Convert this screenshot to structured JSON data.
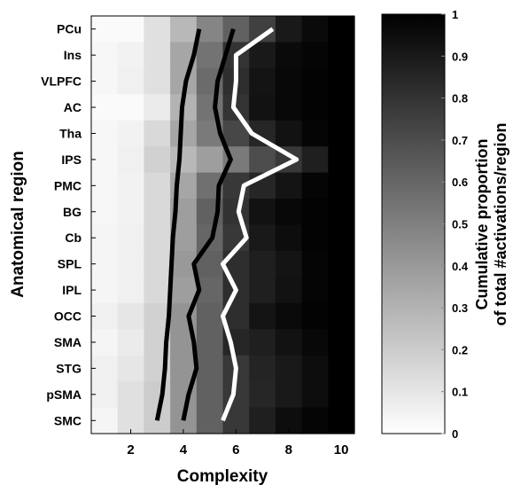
{
  "chart_data": {
    "type": "heatmap",
    "title": "",
    "xlabel": "Complexity",
    "ylabel": "Anatomical region",
    "x_ticks": [
      2,
      4,
      6,
      8,
      10
    ],
    "x_values": [
      1,
      2,
      3,
      4,
      5,
      6,
      7,
      8,
      9,
      10
    ],
    "rows": [
      "PCu",
      "Ins",
      "VLPFC",
      "AC",
      "Tha",
      "IPS",
      "PMC",
      "BG",
      "Cb",
      "SPL",
      "IPL",
      "OCC",
      "SMA",
      "STG",
      "pSMA",
      "SMC"
    ],
    "colorbar": {
      "label_line1": "Cumulative proportion",
      "label_line2": "of total #activations/region",
      "ticks": [
        "0",
        "0.1",
        "0.2",
        "0.3",
        "0.4",
        "0.5",
        "0.6",
        "0.7",
        "0.8",
        "0.9",
        "1"
      ],
      "range": [
        0,
        1
      ],
      "colormap": "white-to-black"
    },
    "cell_values": [
      [
        0.02,
        0.02,
        0.12,
        0.28,
        0.48,
        0.62,
        0.75,
        0.9,
        0.96,
        1.0
      ],
      [
        0.03,
        0.05,
        0.12,
        0.35,
        0.55,
        0.8,
        0.9,
        0.96,
        0.98,
        1.0
      ],
      [
        0.03,
        0.06,
        0.12,
        0.35,
        0.58,
        0.82,
        0.92,
        0.97,
        0.99,
        1.0
      ],
      [
        0.02,
        0.02,
        0.08,
        0.3,
        0.55,
        0.8,
        0.93,
        0.97,
        0.99,
        1.0
      ],
      [
        0.03,
        0.05,
        0.15,
        0.35,
        0.52,
        0.72,
        0.85,
        0.93,
        0.98,
        1.0
      ],
      [
        0.03,
        0.06,
        0.18,
        0.28,
        0.38,
        0.52,
        0.7,
        0.78,
        0.88,
        1.0
      ],
      [
        0.03,
        0.05,
        0.15,
        0.35,
        0.56,
        0.78,
        0.85,
        0.92,
        0.98,
        1.0
      ],
      [
        0.03,
        0.05,
        0.15,
        0.38,
        0.62,
        0.8,
        0.93,
        0.97,
        0.99,
        1.0
      ],
      [
        0.04,
        0.06,
        0.15,
        0.38,
        0.6,
        0.78,
        0.9,
        0.95,
        0.99,
        1.0
      ],
      [
        0.04,
        0.06,
        0.15,
        0.4,
        0.62,
        0.82,
        0.88,
        0.92,
        0.98,
        1.0
      ],
      [
        0.04,
        0.06,
        0.15,
        0.38,
        0.6,
        0.82,
        0.88,
        0.93,
        0.98,
        1.0
      ],
      [
        0.06,
        0.1,
        0.18,
        0.42,
        0.62,
        0.82,
        0.92,
        0.96,
        0.99,
        1.0
      ],
      [
        0.04,
        0.08,
        0.18,
        0.42,
        0.62,
        0.85,
        0.88,
        0.93,
        0.97,
        1.0
      ],
      [
        0.06,
        0.1,
        0.18,
        0.42,
        0.62,
        0.78,
        0.86,
        0.9,
        0.95,
        1.0
      ],
      [
        0.06,
        0.12,
        0.2,
        0.42,
        0.62,
        0.78,
        0.85,
        0.9,
        0.95,
        1.0
      ],
      [
        0.04,
        0.12,
        0.2,
        0.42,
        0.62,
        0.78,
        0.88,
        0.95,
        0.98,
        1.0
      ]
    ],
    "contour_lines": [
      {
        "color": "#000000",
        "x": [
          4.6,
          4.4,
          4.1,
          3.95,
          3.9,
          3.85,
          3.75,
          3.7,
          3.6,
          3.55,
          3.5,
          3.45,
          3.35,
          3.3,
          3.2,
          3.0
        ],
        "level": "left"
      },
      {
        "color": "#000000",
        "x": [
          5.9,
          5.6,
          5.3,
          5.2,
          5.4,
          5.8,
          5.35,
          5.3,
          5.1,
          4.4,
          4.6,
          4.2,
          4.4,
          4.5,
          4.2,
          4.0
        ],
        "level": "middle"
      },
      {
        "color": "#ffffff",
        "x": [
          7.4,
          6.0,
          6.0,
          5.9,
          6.6,
          8.3,
          6.3,
          6.1,
          6.4,
          5.5,
          6.0,
          5.5,
          5.8,
          6.0,
          5.9,
          5.5
        ],
        "level": "right"
      }
    ]
  }
}
